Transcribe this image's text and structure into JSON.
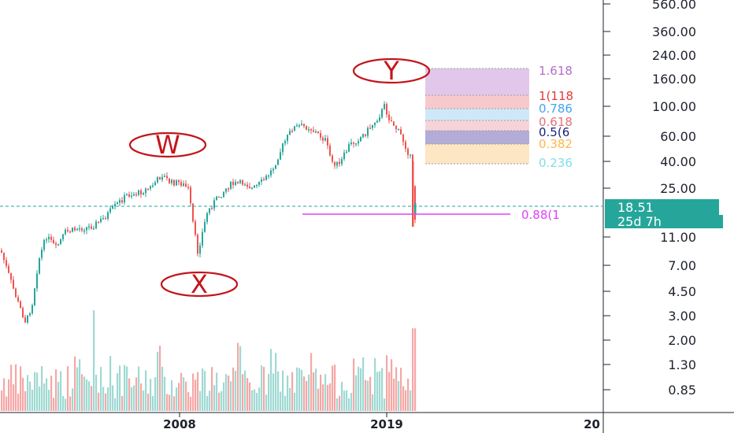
{
  "chart_data": {
    "type": "candlestick",
    "y_scale": "log",
    "y_ticks": [
      "560.00",
      "360.00",
      "240.00",
      "160.00",
      "100.00",
      "60.00",
      "40.00",
      "25.00",
      "11.00",
      "7.00",
      "4.50",
      "3.00",
      "2.00",
      "1.30",
      "0.85"
    ],
    "y_tick_values": [
      560,
      360,
      240,
      160,
      100,
      60,
      40,
      25,
      11,
      7,
      4.5,
      3,
      2,
      1.3,
      0.85
    ],
    "x_ticks": [
      "2008",
      "2019",
      "20"
    ],
    "last_price": "18.51",
    "countdown": "25d 7h",
    "wave_labels": [
      "W",
      "X",
      "Y"
    ],
    "fib_levels": [
      {
        "label": "1.618",
        "color": "#b36fc6"
      },
      {
        "label": "1(118",
        "color": "#e53935"
      },
      {
        "label": "0.786",
        "color": "#42a5f5"
      },
      {
        "label": "0.618",
        "color": "#e57373"
      },
      {
        "label": "0.5(6",
        "color": "#1a237e"
      },
      {
        "label": "0.382",
        "color": "#ffb74d"
      },
      {
        "label": "0.236",
        "color": "#80deea"
      }
    ],
    "support_label": "0.88(1",
    "colors": {
      "up": "#26a69a",
      "down": "#ef5350",
      "support": "#e040fb",
      "wave": "#c2161c"
    }
  }
}
